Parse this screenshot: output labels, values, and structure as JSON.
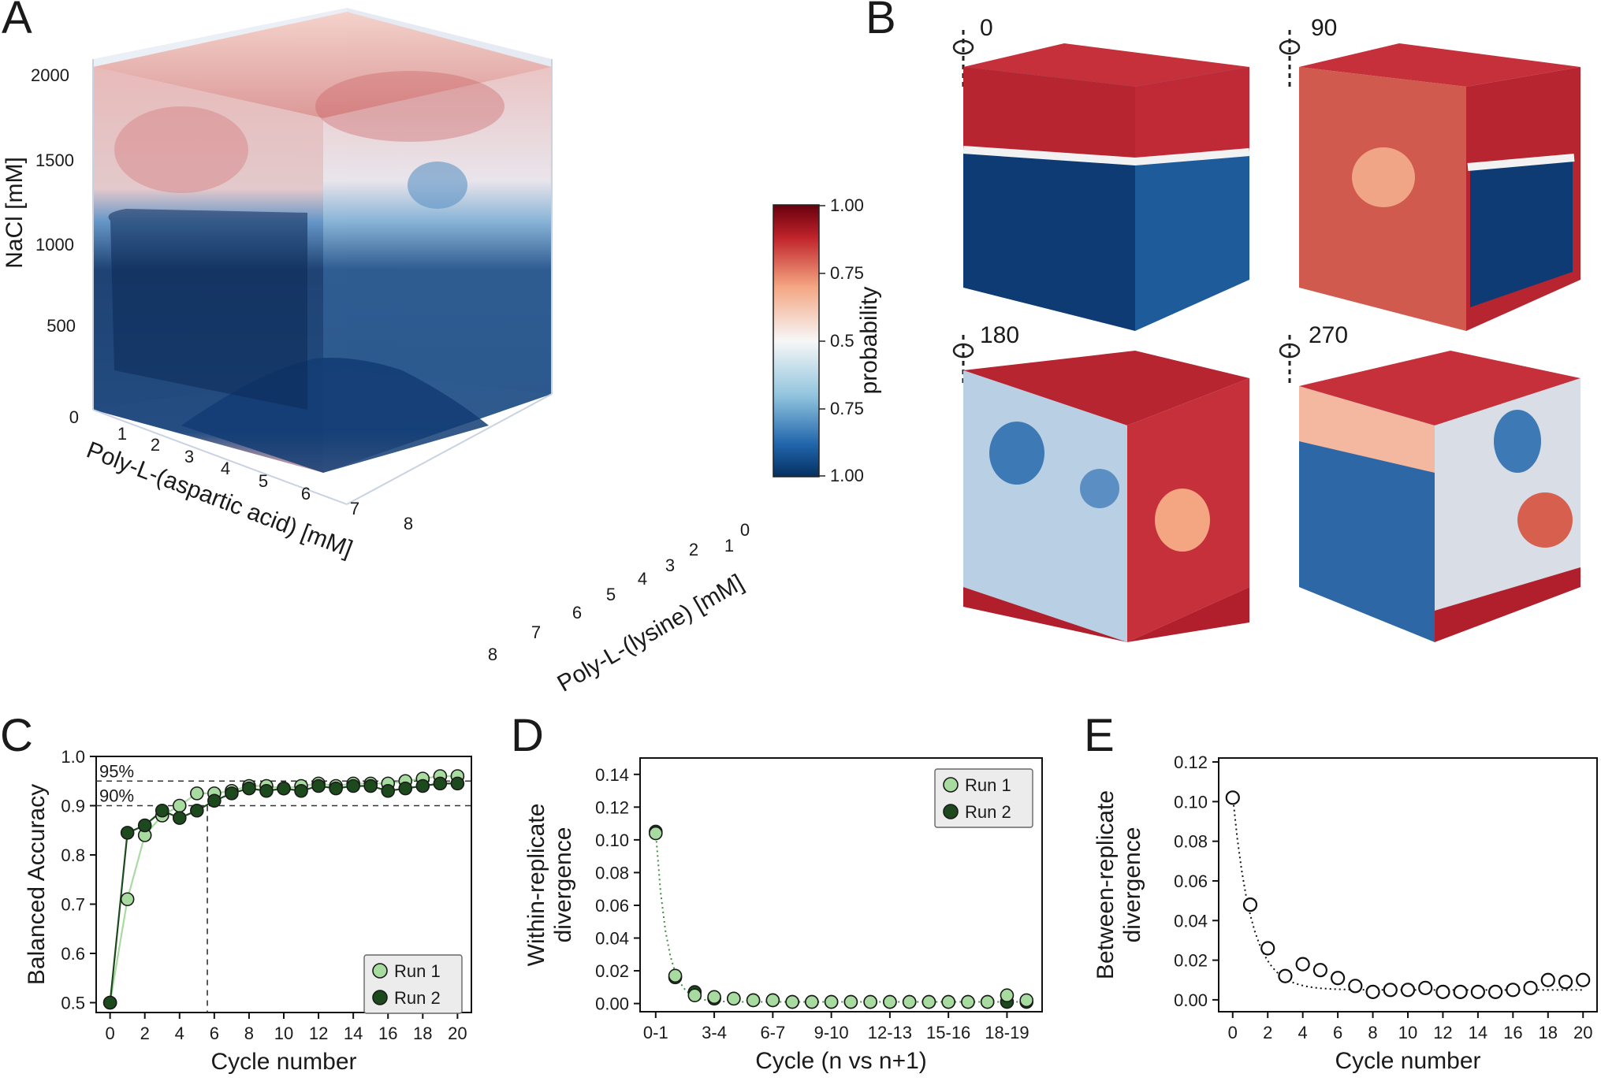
{
  "panels": {
    "A": {
      "letter": "A",
      "z_axis": {
        "label": "NaCl [mM]",
        "ticks": [
          "2000",
          "1500",
          "1000",
          "500",
          "0"
        ]
      },
      "x_axis": {
        "label": "Poly-L-(aspartic acid) [mM]",
        "ticks": [
          "1",
          "2",
          "3",
          "4",
          "5",
          "6",
          "7",
          "8"
        ]
      },
      "y_axis": {
        "label": "Poly-L-(lysine) [mM]",
        "ticks": [
          "0",
          "1",
          "2",
          "3",
          "4",
          "5",
          "6",
          "7",
          "8"
        ]
      },
      "colorbar": {
        "label": "probability",
        "ticks": [
          "1.00",
          "0.75",
          "0.5",
          "0.75",
          "1.00"
        ],
        "top_color": "#a50f15",
        "mid_color": "#f7f7f7",
        "bottom_color": "#08306b"
      }
    },
    "B": {
      "letter": "B",
      "rotations": [
        "0",
        "90",
        "180",
        "270"
      ]
    }
  },
  "chart_data": [
    {
      "panel": "C",
      "letter": "C",
      "type": "line",
      "xlabel": "Cycle number",
      "ylabel": "Balanced Accuracy",
      "xlim": [
        -0.8,
        20.8
      ],
      "ylim": [
        0.48,
        1.0
      ],
      "xticks": [
        0,
        2,
        4,
        6,
        8,
        10,
        12,
        14,
        16,
        18,
        20
      ],
      "yticks": [
        0.5,
        0.6,
        0.7,
        0.8,
        0.9,
        1.0
      ],
      "ytick_labels": [
        "0.5",
        "0.6",
        "0.7",
        "0.8",
        "0.9",
        "1.0"
      ],
      "annotations": [
        {
          "text": "95%",
          "y": 0.95
        },
        {
          "text": "90%",
          "y": 0.9
        }
      ],
      "vline_x": 5.6,
      "x": [
        0,
        1,
        2,
        3,
        4,
        5,
        6,
        7,
        8,
        9,
        10,
        11,
        12,
        13,
        14,
        15,
        16,
        17,
        18,
        19,
        20
      ],
      "series": [
        {
          "name": "Run 1",
          "color": "#a8dba0",
          "values": [
            0.5,
            0.71,
            0.84,
            0.88,
            0.9,
            0.925,
            0.925,
            0.93,
            0.94,
            0.94,
            0.935,
            0.94,
            0.945,
            0.94,
            0.945,
            0.945,
            0.945,
            0.95,
            0.955,
            0.96,
            0.96
          ]
        },
        {
          "name": "Run 2",
          "color": "#1d4a1d",
          "values": [
            0.5,
            0.845,
            0.86,
            0.89,
            0.875,
            0.89,
            0.91,
            0.925,
            0.935,
            0.93,
            0.935,
            0.93,
            0.94,
            0.935,
            0.94,
            0.94,
            0.93,
            0.935,
            0.94,
            0.945,
            0.945
          ]
        }
      ],
      "legend": [
        "Run 1",
        "Run 2"
      ]
    },
    {
      "panel": "D",
      "letter": "D",
      "type": "scatter",
      "xlabel": "Cycle (n vs n+1)",
      "ylabel_lines": [
        "Within-replicate",
        "divergence"
      ],
      "xlim": [
        -0.8,
        19.8
      ],
      "ylim": [
        -0.005,
        0.15
      ],
      "xtick_positions": [
        0,
        3,
        6,
        9,
        12,
        15,
        18
      ],
      "xtick_labels": [
        "0-1",
        "3-4",
        "6-7",
        "9-10",
        "12-13",
        "15-16",
        "18-19"
      ],
      "yticks": [
        0.0,
        0.02,
        0.04,
        0.06,
        0.08,
        0.1,
        0.12,
        0.14
      ],
      "ytick_labels": [
        "0.00",
        "0.02",
        "0.04",
        "0.06",
        "0.08",
        "0.10",
        "0.12",
        "0.14"
      ],
      "x": [
        0,
        1,
        2,
        3,
        4,
        5,
        6,
        7,
        8,
        9,
        10,
        11,
        12,
        13,
        14,
        15,
        16,
        17,
        18,
        19
      ],
      "series": [
        {
          "name": "Run 1",
          "color": "#a8dba0",
          "values": [
            0.104,
            0.017,
            0.005,
            0.004,
            0.003,
            0.002,
            0.002,
            0.001,
            0.001,
            0.001,
            0.001,
            0.001,
            0.001,
            0.001,
            0.001,
            0.001,
            0.001,
            0.001,
            0.005,
            0.002
          ]
        },
        {
          "name": "Run 2",
          "color": "#1d4a1d",
          "values": [
            0.105,
            0.016,
            0.007,
            0.003,
            0.003,
            0.002,
            0.002,
            0.001,
            0.001,
            0.001,
            0.001,
            0.001,
            0.001,
            0.001,
            0.001,
            0.001,
            0.001,
            0.001,
            0.001,
            0.001
          ]
        }
      ],
      "legend": [
        "Run 1",
        "Run 2"
      ]
    },
    {
      "panel": "E",
      "letter": "E",
      "type": "scatter",
      "xlabel": "Cycle number",
      "ylabel_lines": [
        "Between-replicate",
        "divergence"
      ],
      "xlim": [
        -0.8,
        20.8
      ],
      "ylim": [
        -0.006,
        0.122
      ],
      "xticks": [
        0,
        2,
        4,
        6,
        8,
        10,
        12,
        14,
        16,
        18,
        20
      ],
      "yticks": [
        0.0,
        0.02,
        0.04,
        0.06,
        0.08,
        0.1,
        0.12
      ],
      "ytick_labels": [
        "0.00",
        "0.02",
        "0.04",
        "0.06",
        "0.08",
        "0.10",
        "0.12"
      ],
      "x": [
        0,
        1,
        2,
        3,
        4,
        5,
        6,
        7,
        8,
        9,
        10,
        11,
        12,
        13,
        14,
        15,
        16,
        17,
        18,
        19,
        20
      ],
      "values": [
        0.102,
        0.048,
        0.026,
        0.012,
        0.018,
        0.015,
        0.011,
        0.007,
        0.004,
        0.005,
        0.005,
        0.006,
        0.004,
        0.004,
        0.004,
        0.004,
        0.005,
        0.006,
        0.01,
        0.009,
        0.01
      ],
      "marker_color": "#ffffff"
    }
  ]
}
